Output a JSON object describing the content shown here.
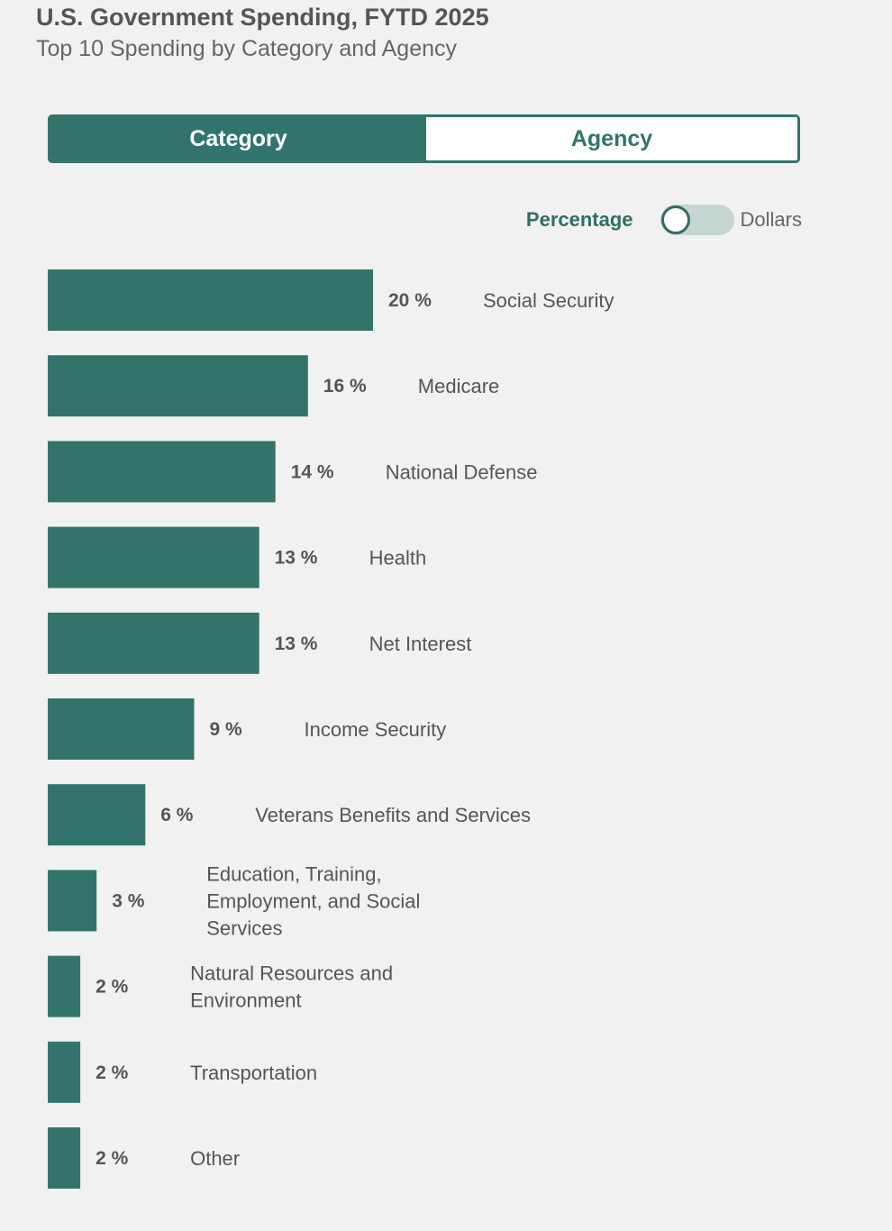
{
  "title": "U.S. Government Spending, FYTD 2025",
  "subtitle": "Top 10 Spending by Category and Agency",
  "tabs": {
    "category": "Category",
    "agency": "Agency",
    "selected": "Category"
  },
  "toggle": {
    "left_label": "Percentage",
    "right_label": "Dollars",
    "state": "Percentage"
  },
  "colors": {
    "accent": "#32746b",
    "background": "#f1f1f1",
    "text": "#555555"
  },
  "chart_data": {
    "type": "bar",
    "orientation": "horizontal",
    "unit": "%",
    "categories": [
      [
        "Social Security"
      ],
      [
        "Medicare"
      ],
      [
        "National Defense"
      ],
      [
        "Health"
      ],
      [
        "Net Interest"
      ],
      [
        "Income Security"
      ],
      [
        "Veterans Benefits and Services"
      ],
      [
        "Education, Training,",
        "Employment, and Social",
        "Services"
      ],
      [
        "Natural Resources and",
        "Environment"
      ],
      [
        "Transportation"
      ],
      [
        "Other"
      ]
    ],
    "values": [
      20,
      16,
      14,
      13,
      13,
      9,
      6,
      3,
      2,
      2,
      2
    ],
    "value_labels": [
      "20 %",
      "16 %",
      "14 %",
      "13 %",
      "13 %",
      "9 %",
      "6 %",
      "3 %",
      "2 %",
      "2 %",
      "2 %"
    ],
    "xlim": [
      0,
      20
    ],
    "grid": false,
    "legend": "none"
  }
}
